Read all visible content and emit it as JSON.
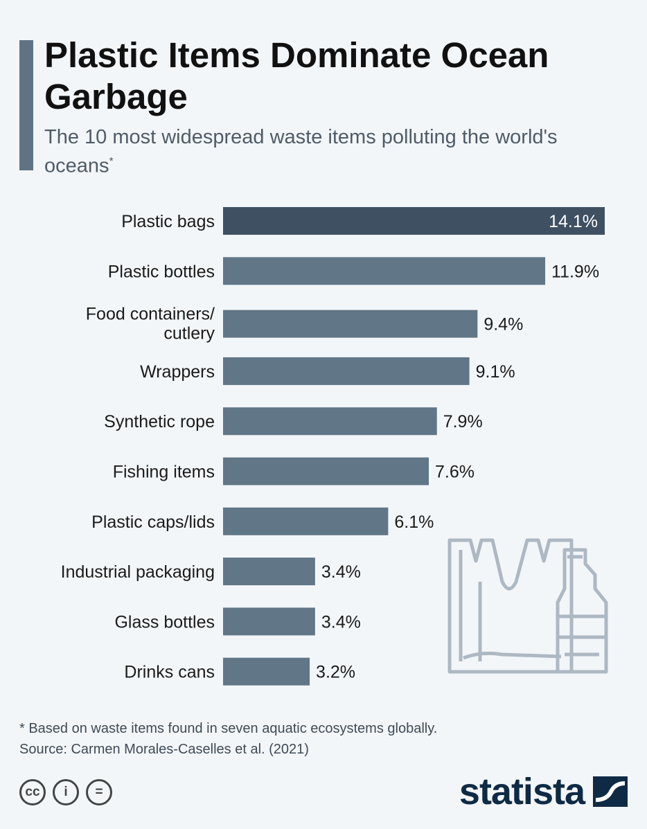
{
  "header": {
    "title": "Plastic Items Dominate Ocean Garbage",
    "subtitle": "The 10 most widespread waste items polluting the world's oceans",
    "subtitle_mark": "*"
  },
  "chart_data": {
    "type": "bar",
    "orientation": "horizontal",
    "title": "Plastic Items Dominate Ocean Garbage",
    "subtitle": "The 10 most widespread waste items polluting the world's oceans",
    "unit": "%",
    "categories": [
      "Plastic bags",
      "Plastic bottles",
      "Food containers/ cutlery",
      "Wrappers",
      "Synthetic rope",
      "Fishing items",
      "Plastic caps/lids",
      "Industrial packaging",
      "Glass bottles",
      "Drinks cans"
    ],
    "values": [
      14.1,
      11.9,
      9.4,
      9.1,
      7.9,
      7.6,
      6.1,
      3.4,
      3.4,
      3.2
    ],
    "value_labels": [
      "14.1%",
      "11.9%",
      "9.4%",
      "9.1%",
      "7.9%",
      "7.6%",
      "6.1%",
      "3.4%",
      "3.4%",
      "3.2%"
    ],
    "xlim": [
      0,
      14.1
    ],
    "grid": false,
    "legend": "none",
    "highlight_color": "#3f5062",
    "bar_color": "#617686"
  },
  "illustration": {
    "icon": "plastic-bag-and-bottle-icon"
  },
  "footer": {
    "note": "* Based on waste items found in seven aquatic ecosystems globally.",
    "source": "Source: Carmen Morales-Caselles et al. (2021)",
    "license_icons": [
      "cc-icon",
      "by-icon",
      "nd-icon"
    ],
    "cc_labels": [
      "cc",
      "i",
      "="
    ],
    "brand": "statista"
  }
}
